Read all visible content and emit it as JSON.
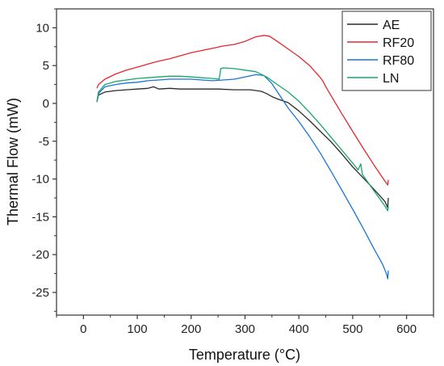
{
  "chart_data": {
    "type": "line",
    "xlabel": "Temperature (°C)",
    "ylabel": "Thermal Flow (mW)",
    "xlim": [
      -50,
      650
    ],
    "ylim": [
      -28,
      12.5
    ],
    "x_ticks": [
      0,
      100,
      200,
      300,
      400,
      500,
      600
    ],
    "y_ticks": [
      10,
      5,
      0,
      -5,
      -10,
      -15,
      -20,
      -25
    ],
    "x_tick_labels": [
      "0",
      "100",
      "200",
      "300",
      "400",
      "500",
      "600"
    ],
    "y_tick_labels": [
      "10",
      "5",
      "0",
      "-5",
      "-10",
      "-15",
      "-20",
      "-25"
    ],
    "grid": false,
    "legend_position": "top-right",
    "series": [
      {
        "name": "AE",
        "color": "#2b2b2b",
        "points": [
          [
            25,
            0.2
          ],
          [
            28,
            1.1
          ],
          [
            40,
            1.5
          ],
          [
            60,
            1.7
          ],
          [
            80,
            1.8
          ],
          [
            100,
            1.9
          ],
          [
            120,
            2.0
          ],
          [
            130,
            2.2
          ],
          [
            140,
            1.9
          ],
          [
            160,
            2.0
          ],
          [
            180,
            1.9
          ],
          [
            200,
            1.9
          ],
          [
            220,
            1.9
          ],
          [
            250,
            1.9
          ],
          [
            280,
            1.8
          ],
          [
            310,
            1.8
          ],
          [
            330,
            1.6
          ],
          [
            340,
            1.3
          ],
          [
            350,
            0.9
          ],
          [
            360,
            0.6
          ],
          [
            380,
            0.1
          ],
          [
            400,
            -1.0
          ],
          [
            420,
            -2.3
          ],
          [
            440,
            -3.7
          ],
          [
            460,
            -5.1
          ],
          [
            480,
            -6.7
          ],
          [
            500,
            -8.4
          ],
          [
            520,
            -9.9
          ],
          [
            540,
            -11.4
          ],
          [
            560,
            -13.0
          ],
          [
            565,
            -13.8
          ],
          [
            566,
            -12.5
          ]
        ]
      },
      {
        "name": "RF20",
        "color": "#e8262b",
        "points": [
          [
            25,
            2.0
          ],
          [
            28,
            2.5
          ],
          [
            40,
            3.2
          ],
          [
            60,
            3.9
          ],
          [
            80,
            4.4
          ],
          [
            100,
            4.8
          ],
          [
            120,
            5.2
          ],
          [
            140,
            5.6
          ],
          [
            160,
            5.9
          ],
          [
            180,
            6.3
          ],
          [
            200,
            6.7
          ],
          [
            220,
            7.0
          ],
          [
            240,
            7.3
          ],
          [
            260,
            7.6
          ],
          [
            280,
            7.8
          ],
          [
            300,
            8.2
          ],
          [
            320,
            8.8
          ],
          [
            335,
            9.0
          ],
          [
            345,
            8.9
          ],
          [
            360,
            8.2
          ],
          [
            380,
            7.2
          ],
          [
            400,
            6.2
          ],
          [
            420,
            5.0
          ],
          [
            440,
            3.4
          ],
          [
            445,
            2.9
          ],
          [
            450,
            2.2
          ],
          [
            460,
            1.0
          ],
          [
            480,
            -1.4
          ],
          [
            500,
            -3.7
          ],
          [
            520,
            -6.0
          ],
          [
            540,
            -8.2
          ],
          [
            560,
            -10.3
          ],
          [
            565,
            -10.8
          ],
          [
            566,
            -10.1
          ]
        ]
      },
      {
        "name": "RF80",
        "color": "#1a74d8",
        "points": [
          [
            25,
            0.2
          ],
          [
            28,
            1.3
          ],
          [
            40,
            2.2
          ],
          [
            60,
            2.5
          ],
          [
            80,
            2.7
          ],
          [
            100,
            2.8
          ],
          [
            120,
            3.0
          ],
          [
            140,
            3.1
          ],
          [
            160,
            3.2
          ],
          [
            180,
            3.2
          ],
          [
            200,
            3.2
          ],
          [
            220,
            3.1
          ],
          [
            240,
            3.0
          ],
          [
            260,
            3.1
          ],
          [
            280,
            3.2
          ],
          [
            300,
            3.5
          ],
          [
            320,
            3.8
          ],
          [
            335,
            3.7
          ],
          [
            350,
            2.6
          ],
          [
            365,
            1.0
          ],
          [
            380,
            -0.6
          ],
          [
            400,
            -2.4
          ],
          [
            420,
            -4.4
          ],
          [
            440,
            -6.6
          ],
          [
            460,
            -9.0
          ],
          [
            480,
            -11.5
          ],
          [
            500,
            -14.0
          ],
          [
            520,
            -16.6
          ],
          [
            540,
            -19.3
          ],
          [
            555,
            -21.2
          ],
          [
            563,
            -22.6
          ],
          [
            565,
            -23.2
          ],
          [
            566,
            -22.1
          ]
        ]
      },
      {
        "name": "LN",
        "color": "#14a86a",
        "points": [
          [
            25,
            0.2
          ],
          [
            28,
            1.5
          ],
          [
            40,
            2.5
          ],
          [
            60,
            2.9
          ],
          [
            80,
            3.1
          ],
          [
            100,
            3.3
          ],
          [
            120,
            3.4
          ],
          [
            140,
            3.5
          ],
          [
            160,
            3.6
          ],
          [
            180,
            3.6
          ],
          [
            200,
            3.5
          ],
          [
            220,
            3.4
          ],
          [
            240,
            3.3
          ],
          [
            252,
            3.2
          ],
          [
            255,
            4.6
          ],
          [
            260,
            4.7
          ],
          [
            280,
            4.6
          ],
          [
            300,
            4.4
          ],
          [
            320,
            4.2
          ],
          [
            340,
            3.5
          ],
          [
            360,
            2.5
          ],
          [
            380,
            1.5
          ],
          [
            400,
            0.3
          ],
          [
            420,
            -1.2
          ],
          [
            440,
            -2.8
          ],
          [
            460,
            -4.5
          ],
          [
            480,
            -6.2
          ],
          [
            500,
            -7.9
          ],
          [
            510,
            -8.8
          ],
          [
            515,
            -8.0
          ],
          [
            518,
            -9.4
          ],
          [
            530,
            -10.6
          ],
          [
            545,
            -12.1
          ],
          [
            560,
            -13.6
          ],
          [
            565,
            -14.2
          ],
          [
            566,
            -13.6
          ]
        ]
      }
    ]
  }
}
